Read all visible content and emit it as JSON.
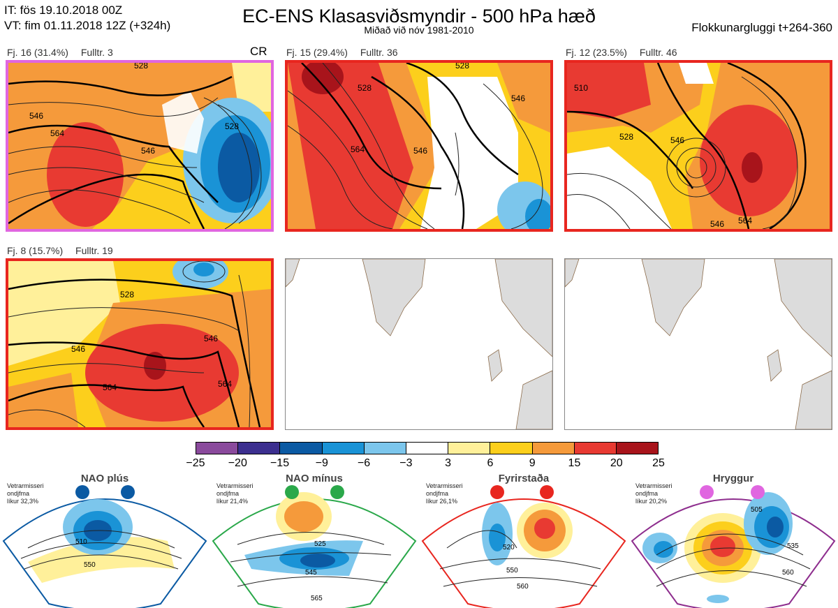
{
  "header": {
    "it": "IT: fös 19.10.2018 00Z",
    "vt": "VT: fim 01.11.2018 12Z  (+324h)",
    "title": "EC-ENS Klasasviðsmyndir - 500 hPa hæð",
    "subtitle": "Miðað við nóv 1981-2010",
    "window": "Flokkunargluggi t+264-360"
  },
  "panels": [
    {
      "cluster": "Fj. 16 (31.4%)",
      "members": "Fulltr. 3",
      "badge": "CR",
      "border": "#e066e0",
      "contours": [
        "528",
        "546",
        "564",
        "546",
        "528"
      ]
    },
    {
      "cluster": "Fj. 15 (29.4%)",
      "members": "Fulltr. 36",
      "badge": "",
      "border": "#e8261f",
      "contours": [
        "528",
        "546",
        "564",
        "546",
        "528"
      ]
    },
    {
      "cluster": "Fj. 12 (23.5%)",
      "members": "Fulltr. 46",
      "badge": "",
      "border": "#e8261f",
      "contours": [
        "510",
        "528",
        "546",
        "564",
        "546"
      ]
    },
    {
      "cluster": "Fj. 8 (15.7%)",
      "members": "Fulltr. 19",
      "badge": "",
      "border": "#e8261f",
      "contours": [
        "528",
        "546",
        "564",
        "546",
        "564"
      ]
    }
  ],
  "colorbar": {
    "ticks": [
      "−25",
      "−20",
      "−15",
      "−9",
      "−6",
      "−3",
      "3",
      "6",
      "9",
      "15",
      "20",
      "25"
    ],
    "colors": [
      "#8a4a9c",
      "#3c2f8f",
      "#0b5aa3",
      "#1a93d6",
      "#7cc6ec",
      "#ffffff",
      "#fff09a",
      "#fccf1c",
      "#f59a3b",
      "#e83a32",
      "#a8141b"
    ]
  },
  "regimes": [
    {
      "name": "NAO plús",
      "season": "Vetrarmisseri",
      "period": "ondjfma",
      "prob": "líkur 32,3%",
      "color": "#0b5aa3",
      "contours": [
        "510",
        "550"
      ]
    },
    {
      "name": "NAO mínus",
      "season": "Vetrarmisseri",
      "period": "ondjfma",
      "prob": "líkur 21,4%",
      "color": "#2aa84a",
      "contours": [
        "525",
        "545",
        "565"
      ]
    },
    {
      "name": "Fyrirstaða",
      "season": "Vetrarmisseri",
      "period": "ondjfma",
      "prob": "líkur 26,1%",
      "color": "#e8261f",
      "contours": [
        "520",
        "550",
        "560"
      ]
    },
    {
      "name": "Hryggur",
      "season": "Vetrarmisseri",
      "period": "ondjfma",
      "prob": "líkur 20,2%",
      "color": "#e066e0",
      "contours": [
        "505",
        "535",
        "560"
      ]
    }
  ]
}
